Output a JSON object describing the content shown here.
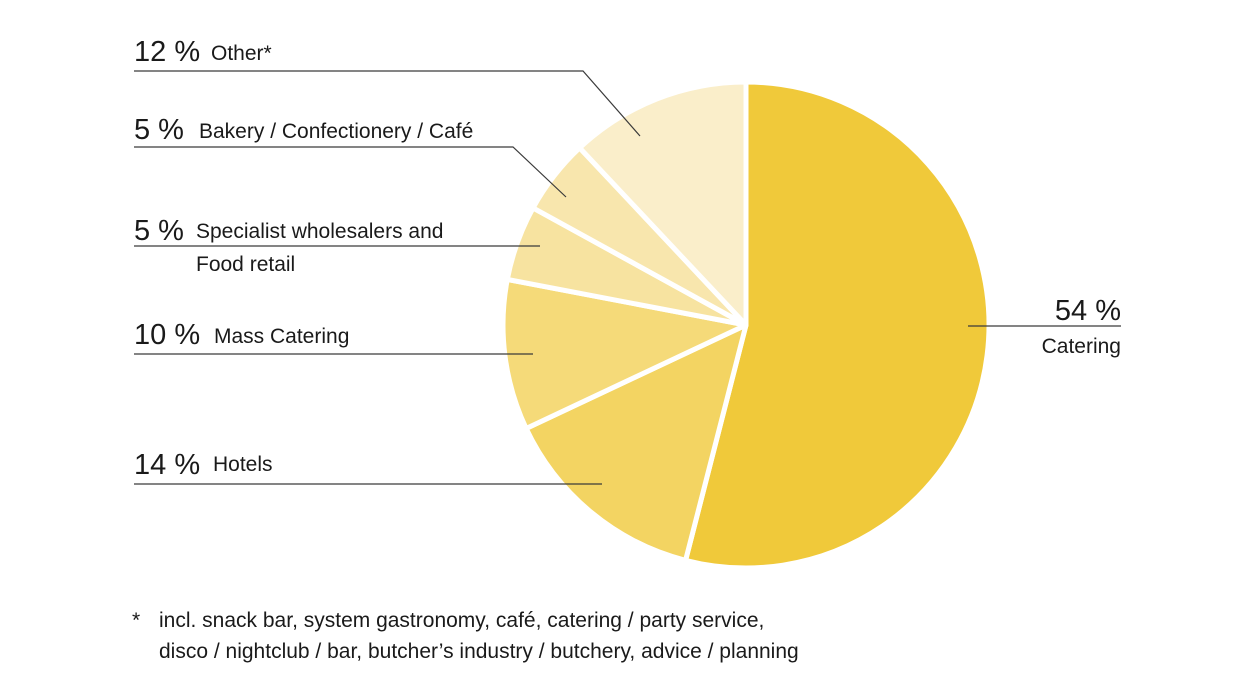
{
  "chart_data": {
    "type": "pie",
    "start": "12 o'clock",
    "direction": "clockwise",
    "slices": [
      {
        "percent_label": "54 %",
        "label_lines": [
          "Catering"
        ],
        "value": 54,
        "color": "#f0c93a"
      },
      {
        "percent_label": "14 %",
        "label_lines": [
          "Hotels"
        ],
        "value": 14,
        "color": "#f3d462"
      },
      {
        "percent_label": "10 %",
        "label_lines": [
          "Mass Catering"
        ],
        "value": 10,
        "color": "#f5da79"
      },
      {
        "percent_label": "5 %",
        "label_lines": [
          "Specialist wholesalers and",
          "Food retail"
        ],
        "value": 5,
        "color": "#f7e3a0"
      },
      {
        "percent_label": "5 %",
        "label_lines": [
          "Bakery / Confectionery / Café"
        ],
        "value": 5,
        "color": "#f8e6ad"
      },
      {
        "percent_label": "12 %",
        "label_lines": [
          "Other*"
        ],
        "value": 12,
        "color": "#faeeca"
      }
    ]
  },
  "footnote": {
    "marker": "*",
    "lines": [
      "incl. snack bar, system gastronomy, café, catering / party service,",
      "disco / nightclub / bar, butcher’s industry / butchery, advice / planning"
    ]
  }
}
